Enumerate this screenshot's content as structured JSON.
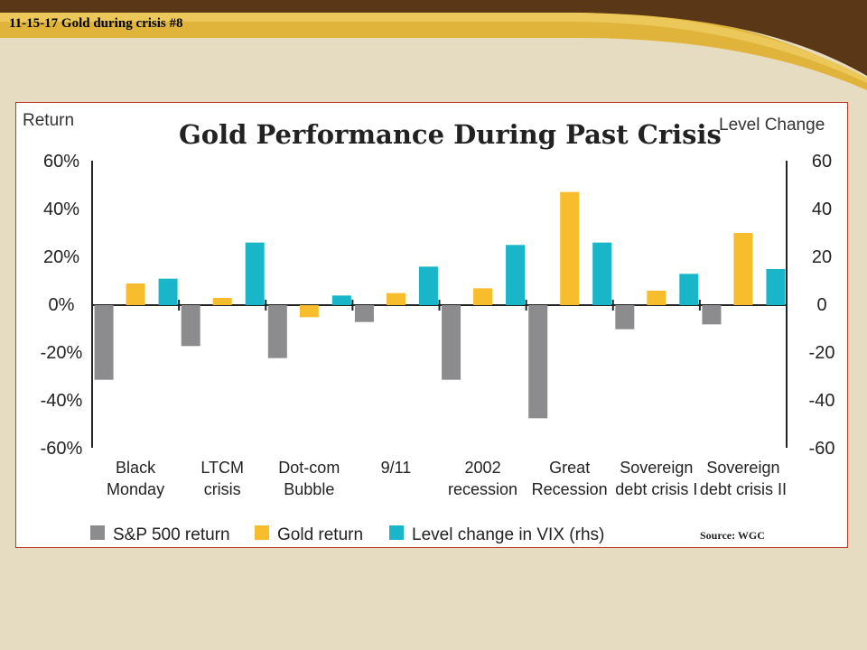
{
  "slide": {
    "title": "11-15-17 Gold during crisis #8"
  },
  "colors": {
    "header_dark": "#5a3716",
    "header_gold": "#e0b43a",
    "background": "#e6dcc2",
    "sp500": "#8c8c8e",
    "gold": "#f7bd2c",
    "vix": "#19b5c8",
    "frame_border": "#c0392b"
  },
  "chart_data": {
    "type": "bar",
    "title": "Gold Performance During Past Crisis",
    "ylabel": "Return",
    "y2label": "Level Change",
    "ylim": [
      -60,
      60
    ],
    "y2lim": [
      -60,
      60
    ],
    "yticks": [
      "60%",
      "40%",
      "20%",
      "0%",
      "-20%",
      "-40%",
      "-60%"
    ],
    "y2ticks": [
      "60",
      "40",
      "20",
      "0",
      "-20",
      "-40",
      "-60"
    ],
    "categories": [
      [
        "Black",
        "Monday"
      ],
      [
        "LTCM",
        "crisis"
      ],
      [
        "Dot-com",
        "Bubble"
      ],
      [
        "9/11"
      ],
      [
        "2002",
        "recession"
      ],
      [
        "Great",
        "Recession"
      ],
      [
        "Sovereign",
        "debt crisis I"
      ],
      [
        "Sovereign",
        "debt crisis II"
      ]
    ],
    "series": [
      {
        "name": "S&P 500 return",
        "unit": "%",
        "axis": "left",
        "values": [
          -31,
          -17,
          -22,
          -7,
          -31,
          -47,
          -10,
          -8
        ]
      },
      {
        "name": "Gold return",
        "unit": "%",
        "axis": "left",
        "values": [
          9,
          3,
          -5,
          5,
          7,
          47,
          6,
          30
        ]
      },
      {
        "name": "Level change in VIX (rhs)",
        "unit": "level",
        "axis": "right",
        "values": [
          11,
          26,
          4,
          16,
          25,
          26,
          13,
          15
        ]
      }
    ],
    "legend_position": "bottom",
    "grid": false,
    "source": "Source: WGC"
  }
}
